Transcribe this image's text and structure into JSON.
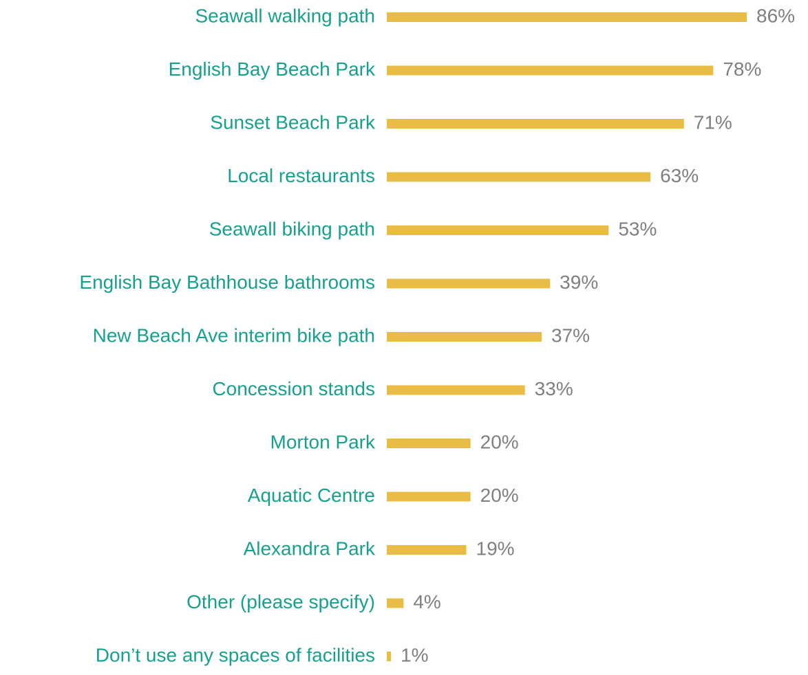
{
  "chart_data": {
    "type": "bar",
    "orientation": "horizontal",
    "categories": [
      "Seawall walking path",
      "English Bay Beach Park",
      "Sunset Beach Park",
      "Local restaurants",
      "Seawall biking path",
      "English Bay Bathhouse bathrooms",
      "New Beach Ave interim bike path",
      "Concession stands",
      "Morton Park",
      "Aquatic Centre",
      "Alexandra Park",
      "Other (please specify)",
      "Don’t use any spaces of facilities"
    ],
    "values": [
      86,
      78,
      71,
      63,
      53,
      39,
      37,
      33,
      20,
      20,
      19,
      4,
      1
    ],
    "value_labels": [
      "86%",
      "78%",
      "71%",
      "63%",
      "53%",
      "39%",
      "37%",
      "33%",
      "20%",
      "20%",
      "19%",
      "4%",
      "1%"
    ],
    "color": "#e9bd45",
    "label_color": "#17a08f",
    "value_label_color": "#7f7f7f"
  }
}
